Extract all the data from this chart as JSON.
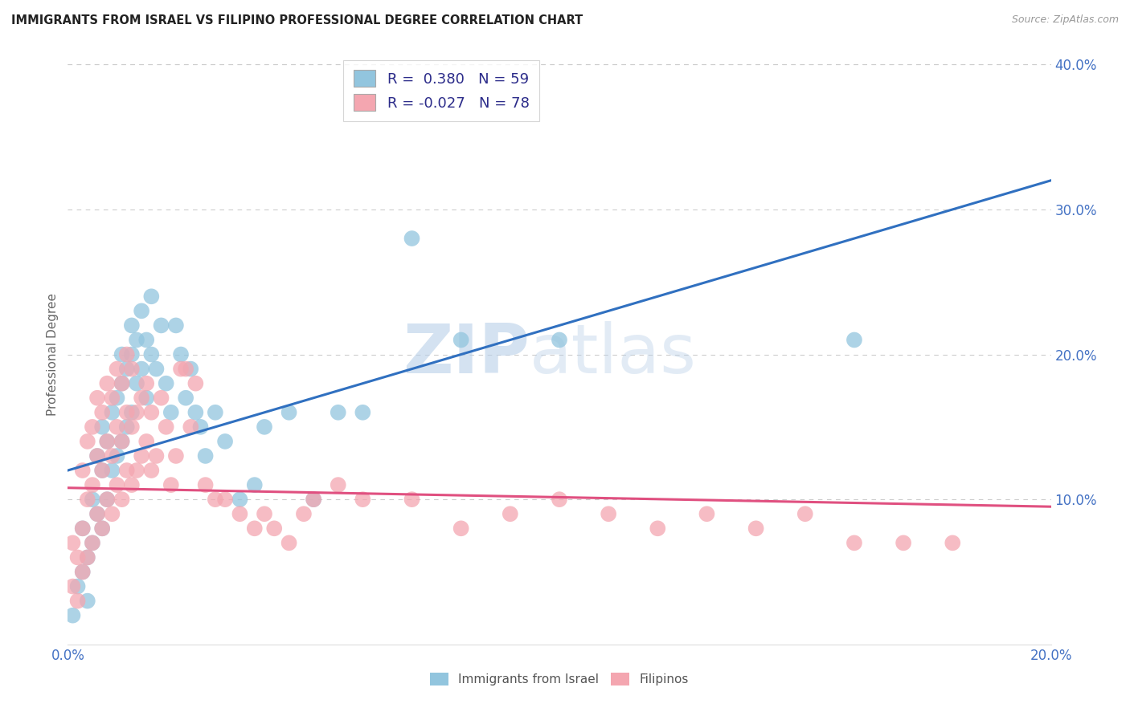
{
  "title": "IMMIGRANTS FROM ISRAEL VS FILIPINO PROFESSIONAL DEGREE CORRELATION CHART",
  "source": "Source: ZipAtlas.com",
  "ylabel": "Professional Degree",
  "x_min": 0.0,
  "x_max": 0.2,
  "y_min": 0.0,
  "y_max": 0.4,
  "x_ticks": [
    0.0,
    0.05,
    0.1,
    0.15,
    0.2
  ],
  "x_tick_labels": [
    "0.0%",
    "",
    "",
    "",
    "20.0%"
  ],
  "y_ticks_right": [
    0.1,
    0.2,
    0.3,
    0.4
  ],
  "y_tick_labels_right": [
    "10.0%",
    "20.0%",
    "30.0%",
    "40.0%"
  ],
  "color_israel": "#92c5de",
  "color_filipino": "#f4a6b0",
  "color_trend_israel": "#3070c0",
  "color_trend_filipino": "#e05080",
  "color_text": "#4472C4",
  "color_legend_text": "#2c2c8a",
  "watermark_zip": "ZIP",
  "watermark_atlas": "atlas",
  "trend_israel_x0": 0.0,
  "trend_israel_y0": 0.12,
  "trend_israel_x1": 0.2,
  "trend_israel_y1": 0.32,
  "trend_filipino_x0": 0.0,
  "trend_filipino_y0": 0.108,
  "trend_filipino_x1": 0.2,
  "trend_filipino_y1": 0.095,
  "israel_x": [
    0.001,
    0.002,
    0.003,
    0.003,
    0.004,
    0.004,
    0.005,
    0.005,
    0.006,
    0.006,
    0.007,
    0.007,
    0.007,
    0.008,
    0.008,
    0.009,
    0.009,
    0.01,
    0.01,
    0.011,
    0.011,
    0.011,
    0.012,
    0.012,
    0.013,
    0.013,
    0.013,
    0.014,
    0.014,
    0.015,
    0.015,
    0.016,
    0.016,
    0.017,
    0.017,
    0.018,
    0.019,
    0.02,
    0.021,
    0.022,
    0.023,
    0.024,
    0.025,
    0.026,
    0.027,
    0.028,
    0.03,
    0.032,
    0.035,
    0.038,
    0.04,
    0.045,
    0.05,
    0.055,
    0.06,
    0.07,
    0.08,
    0.1,
    0.16
  ],
  "israel_y": [
    0.02,
    0.04,
    0.05,
    0.08,
    0.03,
    0.06,
    0.07,
    0.1,
    0.09,
    0.13,
    0.08,
    0.12,
    0.15,
    0.1,
    0.14,
    0.12,
    0.16,
    0.13,
    0.17,
    0.14,
    0.18,
    0.2,
    0.15,
    0.19,
    0.16,
    0.2,
    0.22,
    0.18,
    0.21,
    0.19,
    0.23,
    0.17,
    0.21,
    0.2,
    0.24,
    0.19,
    0.22,
    0.18,
    0.16,
    0.22,
    0.2,
    0.17,
    0.19,
    0.16,
    0.15,
    0.13,
    0.16,
    0.14,
    0.1,
    0.11,
    0.15,
    0.16,
    0.1,
    0.16,
    0.16,
    0.28,
    0.21,
    0.21,
    0.21
  ],
  "filipino_x": [
    0.001,
    0.001,
    0.002,
    0.002,
    0.003,
    0.003,
    0.003,
    0.004,
    0.004,
    0.004,
    0.005,
    0.005,
    0.005,
    0.006,
    0.006,
    0.006,
    0.007,
    0.007,
    0.007,
    0.008,
    0.008,
    0.008,
    0.009,
    0.009,
    0.009,
    0.01,
    0.01,
    0.01,
    0.011,
    0.011,
    0.011,
    0.012,
    0.012,
    0.012,
    0.013,
    0.013,
    0.013,
    0.014,
    0.014,
    0.015,
    0.015,
    0.016,
    0.016,
    0.017,
    0.017,
    0.018,
    0.019,
    0.02,
    0.021,
    0.022,
    0.023,
    0.024,
    0.025,
    0.026,
    0.028,
    0.03,
    0.032,
    0.035,
    0.038,
    0.04,
    0.042,
    0.045,
    0.048,
    0.05,
    0.055,
    0.06,
    0.07,
    0.08,
    0.09,
    0.1,
    0.11,
    0.12,
    0.13,
    0.14,
    0.15,
    0.16,
    0.17,
    0.18
  ],
  "filipino_y": [
    0.04,
    0.07,
    0.03,
    0.06,
    0.05,
    0.08,
    0.12,
    0.06,
    0.1,
    0.14,
    0.07,
    0.11,
    0.15,
    0.09,
    0.13,
    0.17,
    0.08,
    0.12,
    0.16,
    0.1,
    0.14,
    0.18,
    0.09,
    0.13,
    0.17,
    0.11,
    0.15,
    0.19,
    0.1,
    0.14,
    0.18,
    0.12,
    0.16,
    0.2,
    0.11,
    0.15,
    0.19,
    0.12,
    0.16,
    0.13,
    0.17,
    0.14,
    0.18,
    0.12,
    0.16,
    0.13,
    0.17,
    0.15,
    0.11,
    0.13,
    0.19,
    0.19,
    0.15,
    0.18,
    0.11,
    0.1,
    0.1,
    0.09,
    0.08,
    0.09,
    0.08,
    0.07,
    0.09,
    0.1,
    0.11,
    0.1,
    0.1,
    0.08,
    0.09,
    0.1,
    0.09,
    0.08,
    0.09,
    0.08,
    0.09,
    0.07,
    0.07,
    0.07
  ]
}
